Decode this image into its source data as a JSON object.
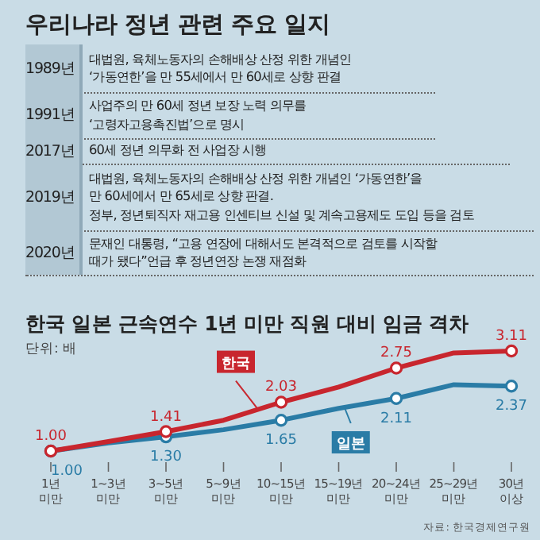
{
  "chart_data": [
    {
      "type": "other",
      "title": "우리나라 정년 관련 주요 일지",
      "categories": [
        "1989년",
        "1991년",
        "2017년",
        "2019년",
        "2020년"
      ],
      "annotations": [
        "대법원, 육체노동자의 손해배상 산정 위한 개념인\n‘가동연한’을 만 55세에서 만 60세로 상향 판결",
        "사업주의 만 60세 정년 보장 노력 의무를\n‘고령자고용촉진법’으로 명시",
        "60세 정년 의무화 전 사업장 시행",
        "대법원, 육체노동자의 손해배상 산정 위한 개념인 ‘가동연한’을\n만 60세에서 만 65세로 상향 판결.\n정부, 정년퇴직자 재고용 인센티브 신설 및 계속고용제도 도입 등을 검토",
        "문재인 대통령, “고용 연장에 대해서도 본격적으로 검토를 시작할\n때가 됐다”언급 후 정년연장 논쟁 재점화"
      ]
    },
    {
      "type": "line",
      "title": "한국  일본 근속연수 1년 미만 직원 대비 임금 격차",
      "subtitle": "단위: 배",
      "categories": [
        "1년\n미만",
        "1~3년\n미만",
        "3~5년\n미만",
        "5~9년\n미만",
        "10~15년\n미만",
        "15~19년\n미만",
        "20~24년\n미만",
        "25~29년\n미만",
        "30년\n이상"
      ],
      "series": [
        {
          "name": "한국",
          "color": "#c8262e",
          "values": [
            1.0,
            1.2,
            1.41,
            1.65,
            2.03,
            2.35,
            2.75,
            3.07,
            3.11
          ],
          "value_labels": [
            "1.00",
            null,
            "1.41",
            null,
            "2.03",
            null,
            "2.75",
            null,
            "3.11"
          ]
        },
        {
          "name": "일본",
          "color": "#2a7ca6",
          "values": [
            1.0,
            1.17,
            1.3,
            1.45,
            1.65,
            1.9,
            2.11,
            2.4,
            2.37
          ],
          "value_labels": [
            "1.00",
            null,
            "1.30",
            null,
            "1.65",
            null,
            "2.11",
            null,
            "2.37"
          ]
        }
      ],
      "marker": "circle",
      "annotations": [
        "자료: 한국경제연구원"
      ]
    }
  ]
}
